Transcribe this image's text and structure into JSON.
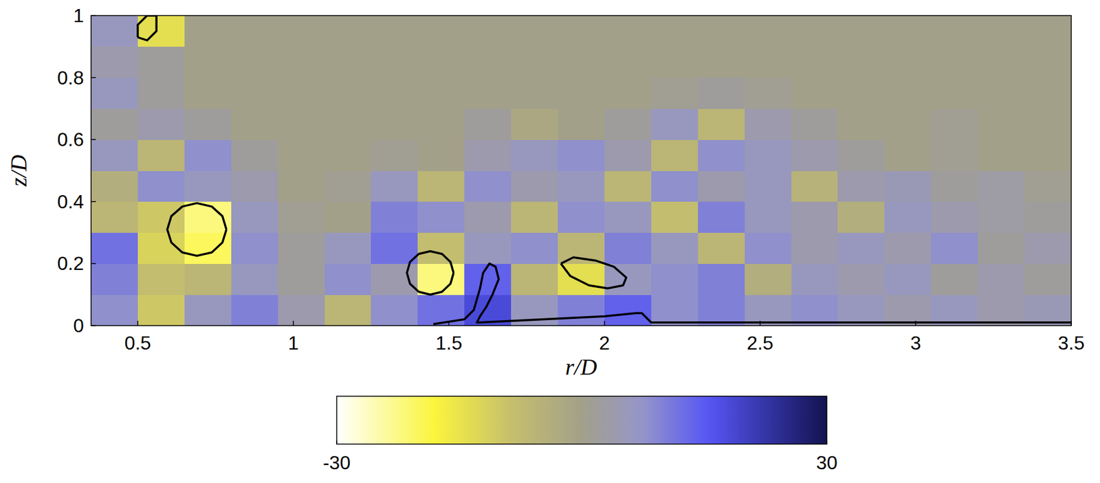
{
  "chart_data": {
    "type": "heatmap",
    "xlabel": "r/D",
    "ylabel": "z/D",
    "xlim": [
      0.35,
      3.5
    ],
    "ylim": [
      0,
      1
    ],
    "xticks": [
      0.5,
      1,
      1.5,
      2,
      2.5,
      3,
      3.5
    ],
    "yticks": [
      0,
      0.2,
      0.4,
      0.6,
      0.8,
      1
    ],
    "x": [
      0.425,
      0.575,
      0.725,
      0.875,
      1.025,
      1.175,
      1.325,
      1.475,
      1.625,
      1.775,
      1.925,
      2.075,
      2.225,
      2.375,
      2.525,
      2.675,
      2.825,
      2.975,
      3.125,
      3.275,
      3.425
    ],
    "y": [
      0.05,
      0.15,
      0.25,
      0.35,
      0.45,
      0.55,
      0.65,
      0.75,
      0.85,
      0.95
    ],
    "values": [
      [
        8,
        -10,
        6,
        10,
        4,
        -6,
        8,
        12,
        18,
        6,
        10,
        14,
        8,
        10,
        6,
        8,
        6,
        4,
        6,
        4,
        5
      ],
      [
        10,
        -8,
        -6,
        6,
        2,
        8,
        4,
        -22,
        14,
        -6,
        -14,
        6,
        8,
        10,
        -4,
        6,
        4,
        6,
        2,
        4,
        2
      ],
      [
        12,
        -12,
        -20,
        8,
        2,
        6,
        12,
        -8,
        6,
        8,
        -6,
        10,
        6,
        -6,
        8,
        4,
        6,
        4,
        8,
        2,
        4
      ],
      [
        -6,
        -10,
        -22,
        6,
        1,
        0,
        10,
        8,
        4,
        -6,
        8,
        6,
        -8,
        10,
        6,
        4,
        -4,
        6,
        4,
        3,
        2
      ],
      [
        -4,
        8,
        6,
        4,
        0,
        1,
        6,
        -6,
        8,
        4,
        6,
        -6,
        8,
        4,
        6,
        -5,
        4,
        5,
        2,
        3,
        1
      ],
      [
        6,
        -6,
        8,
        2,
        0,
        0,
        1,
        0,
        4,
        6,
        8,
        4,
        -6,
        8,
        6,
        4,
        2,
        0,
        1,
        0,
        0
      ],
      [
        2,
        4,
        2,
        0,
        0,
        0,
        0,
        0,
        2,
        -2,
        0,
        2,
        6,
        -6,
        4,
        2,
        0,
        0,
        1,
        0,
        0
      ],
      [
        6,
        2,
        0,
        0,
        0,
        0,
        0,
        0,
        0,
        0,
        0,
        0,
        1,
        2,
        1,
        0,
        0,
        0,
        0,
        0,
        0
      ],
      [
        4,
        2,
        0,
        0,
        0,
        0,
        0,
        0,
        0,
        0,
        0,
        0,
        0,
        0,
        0,
        0,
        0,
        0,
        0,
        0,
        0
      ],
      [
        6,
        -14,
        0,
        0,
        0,
        0,
        0,
        0,
        0,
        0,
        0,
        0,
        0,
        0,
        0,
        0,
        0,
        0,
        0,
        0,
        0
      ]
    ],
    "colorbar": {
      "range": [
        -30,
        30
      ],
      "ticks": [
        -30,
        30
      ]
    },
    "contours": [
      {
        "r": [
          0.785,
          0.772,
          0.738,
          0.69,
          0.643,
          0.608,
          0.595,
          0.608,
          0.643,
          0.69,
          0.738,
          0.772,
          0.785
        ],
        "z": [
          0.31,
          0.353,
          0.384,
          0.395,
          0.384,
          0.353,
          0.31,
          0.268,
          0.236,
          0.225,
          0.236,
          0.268,
          0.31
        ]
      },
      {
        "r": [
          1.515,
          1.505,
          1.478,
          1.44,
          1.403,
          1.375,
          1.365,
          1.375,
          1.403,
          1.44,
          1.478,
          1.505,
          1.515
        ],
        "z": [
          0.17,
          0.205,
          0.231,
          0.24,
          0.231,
          0.205,
          0.17,
          0.135,
          0.109,
          0.1,
          0.109,
          0.135,
          0.17
        ]
      },
      {
        "r": [
          1.86,
          1.9,
          1.97,
          2.03,
          2.07,
          2.06,
          2.01,
          1.95,
          1.89,
          1.86
        ],
        "z": [
          0.2,
          0.22,
          0.21,
          0.19,
          0.155,
          0.13,
          0.12,
          0.13,
          0.16,
          0.2
        ]
      },
      {
        "r": [
          0.5,
          0.53,
          0.56,
          0.56,
          0.53,
          0.5,
          0.5
        ],
        "z": [
          0.93,
          0.92,
          0.95,
          1.0,
          1.0,
          0.97,
          0.93
        ]
      },
      {
        "r": [
          1.45,
          1.55,
          1.58,
          1.6,
          1.61,
          1.63,
          1.65,
          1.66,
          1.64,
          1.62,
          1.6,
          1.59,
          1.6,
          2.0,
          2.1,
          2.12,
          2.15,
          3.5
        ],
        "z": [
          0.005,
          0.02,
          0.05,
          0.12,
          0.17,
          0.2,
          0.19,
          0.15,
          0.1,
          0.06,
          0.03,
          0.01,
          0.01,
          0.03,
          0.04,
          0.04,
          0.01,
          0.01
        ]
      }
    ]
  }
}
